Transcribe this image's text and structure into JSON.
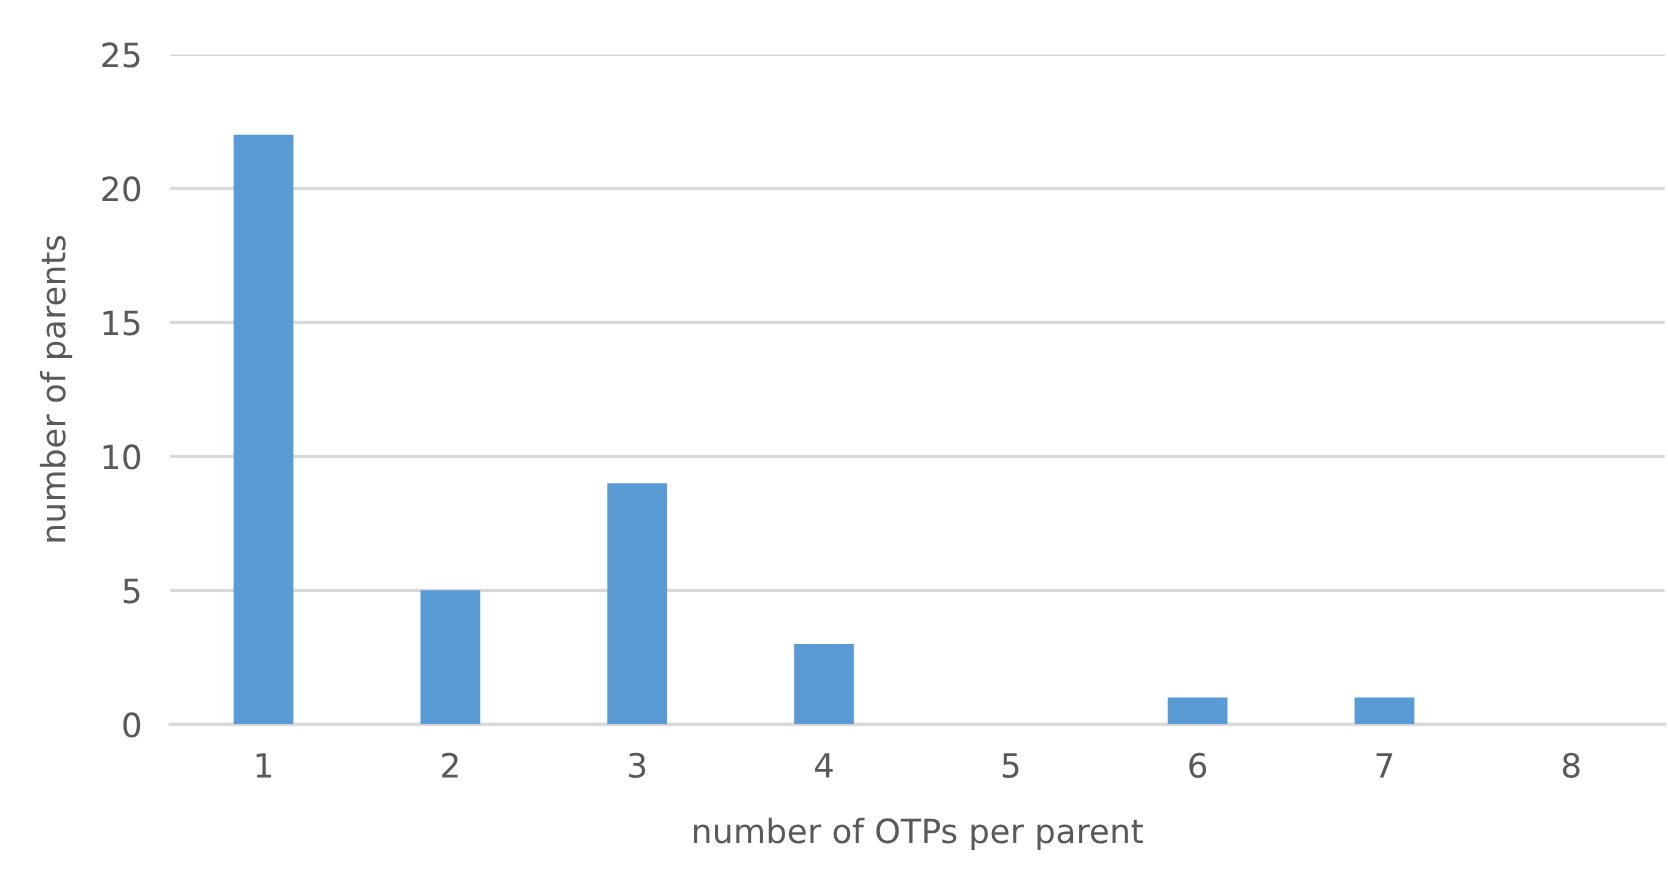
{
  "chart_data": {
    "type": "bar",
    "xlabel": "number of OTPs per parent",
    "ylabel": "number of parents",
    "categories": [
      "1",
      "2",
      "3",
      "4",
      "5",
      "6",
      "7",
      "8"
    ],
    "values": [
      22,
      5,
      9,
      3,
      0,
      1,
      1,
      0
    ],
    "color": "#5b9bd5",
    "ylim": [
      0,
      25
    ],
    "yticks": [
      0,
      5,
      10,
      15,
      20,
      25
    ],
    "grid": "y"
  }
}
